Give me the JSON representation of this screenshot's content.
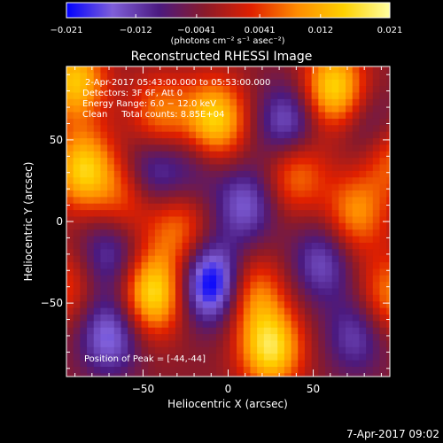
{
  "chart_data": {
    "type": "heatmap",
    "title": "Reconstructed RHESSI Image",
    "xlabel": "Heliocentric X (arcsec)",
    "ylabel": "Heliocentric Y (arcsec)",
    "xlim": [
      -95,
      95
    ],
    "ylim": [
      -95,
      95
    ],
    "xticks": [
      -50,
      0,
      50
    ],
    "yticks": [
      -50,
      0,
      50
    ],
    "colorbar": {
      "unit_label": "(photons cm⁻² s⁻¹ asec⁻²)",
      "range": [
        -0.021,
        0.021
      ],
      "ticks": [
        -0.021,
        -0.012,
        -0.0041,
        0.0041,
        0.012,
        0.021
      ],
      "tick_labels": [
        "−0.021",
        "−0.012",
        "−0.0041",
        "0.0041",
        "0.012",
        "0.021"
      ],
      "colormap_stops": [
        "#0000ff",
        "#7f5fd9",
        "#4b1a80",
        "#8a1a2a",
        "#e02000",
        "#ff8c00",
        "#ffd000",
        "#ffffa0"
      ]
    },
    "annotations": [
      "2-Apr-2017 05:43:00.000 to 05:53:00.000",
      "Detectors: 3F 6F, Att 0",
      "Energy Range: 6.0 − 12.0 keV",
      "Clean     Total counts: 8.85E+04"
    ],
    "peak_label": "Position of Peak = [-44,-44]",
    "pixel_size_arcsec": 4,
    "blobs": [
      {
        "x": -90,
        "y": 86,
        "value": 0.018
      },
      {
        "x": -85,
        "y": 32,
        "value": 0.019
      },
      {
        "x": -60,
        "y": 15,
        "value": 0.01
      },
      {
        "x": -40,
        "y": 65,
        "value": 0.012
      },
      {
        "x": -30,
        "y": -5,
        "value": 0.011
      },
      {
        "x": -44,
        "y": -44,
        "value": 0.021
      },
      {
        "x": -8,
        "y": 62,
        "value": 0.02
      },
      {
        "x": 15,
        "y": -45,
        "value": 0.012
      },
      {
        "x": 25,
        "y": -78,
        "value": 0.021
      },
      {
        "x": 40,
        "y": 30,
        "value": 0.012
      },
      {
        "x": 62,
        "y": 82,
        "value": 0.02
      },
      {
        "x": 75,
        "y": 5,
        "value": 0.013
      },
      {
        "x": 95,
        "y": 40,
        "value": 0.012
      },
      {
        "x": 95,
        "y": -45,
        "value": 0.012
      },
      {
        "x": -95,
        "y": -40,
        "value": 0.008
      },
      {
        "x": -70,
        "y": -70,
        "value": -0.014
      },
      {
        "x": -70,
        "y": -20,
        "value": -0.01
      },
      {
        "x": -45,
        "y": 30,
        "value": -0.011
      },
      {
        "x": -10,
        "y": -38,
        "value": -0.021
      },
      {
        "x": 10,
        "y": 10,
        "value": -0.012
      },
      {
        "x": 35,
        "y": 60,
        "value": -0.013
      },
      {
        "x": 55,
        "y": -25,
        "value": -0.011
      },
      {
        "x": 75,
        "y": -70,
        "value": -0.01
      },
      {
        "x": 85,
        "y": 55,
        "value": -0.008
      },
      {
        "x": -20,
        "y": 35,
        "value": -0.006
      }
    ]
  },
  "footer": {
    "timestamp": "7-Apr-2017 09:02"
  }
}
